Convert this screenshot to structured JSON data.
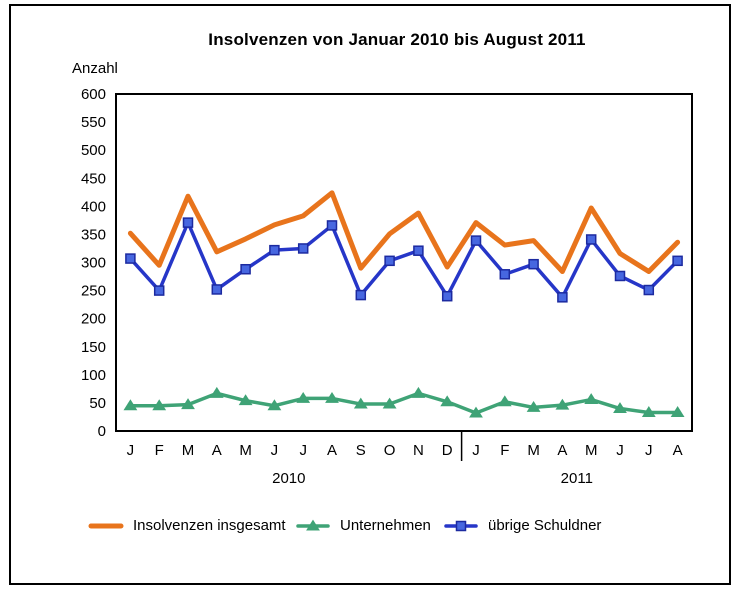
{
  "chart_data": {
    "type": "line",
    "title": "Insolvenzen von Januar 2010 bis August 2011",
    "ylabel": "Anzahl",
    "xlabel": "",
    "ylim": [
      0,
      600
    ],
    "ytick_step": 50,
    "grid": false,
    "legend_position": "bottom",
    "x_months": [
      "J",
      "F",
      "M",
      "A",
      "M",
      "J",
      "J",
      "A",
      "S",
      "O",
      "N",
      "D",
      "J",
      "F",
      "M",
      "A",
      "M",
      "J",
      "J",
      "A"
    ],
    "year_groups": [
      {
        "label": "2010",
        "start": 0,
        "end": 11
      },
      {
        "label": "2011",
        "start": 12,
        "end": 19
      }
    ],
    "series": [
      {
        "id": "insgesamt",
        "name": "Insolvenzen insgesamt",
        "color": "#E8741C",
        "line_width": 5,
        "marker": "none",
        "values": [
          352,
          295,
          418,
          319,
          342,
          367,
          383,
          424,
          290,
          351,
          388,
          292,
          371,
          331,
          339,
          284,
          397,
          316,
          284,
          336
        ]
      },
      {
        "id": "unternehmen",
        "name": "Unternehmen",
        "color": "#3FA376",
        "line_width": 3.5,
        "marker": "triangle",
        "values": [
          45,
          45,
          47,
          67,
          54,
          45,
          58,
          58,
          48,
          48,
          67,
          52,
          32,
          52,
          42,
          46,
          56,
          40,
          33,
          33
        ]
      },
      {
        "id": "uebrige-schuldner",
        "name": "übrige Schuldner",
        "color": "#2636C8",
        "line_width": 3.5,
        "marker": "square",
        "marker_fill": "#4767E0",
        "marker_stroke": "#1C2AA0",
        "values": [
          307,
          250,
          371,
          252,
          288,
          322,
          325,
          366,
          242,
          303,
          321,
          240,
          339,
          279,
          297,
          238,
          341,
          276,
          251,
          303
        ]
      }
    ],
    "axis_color": "#000000"
  }
}
